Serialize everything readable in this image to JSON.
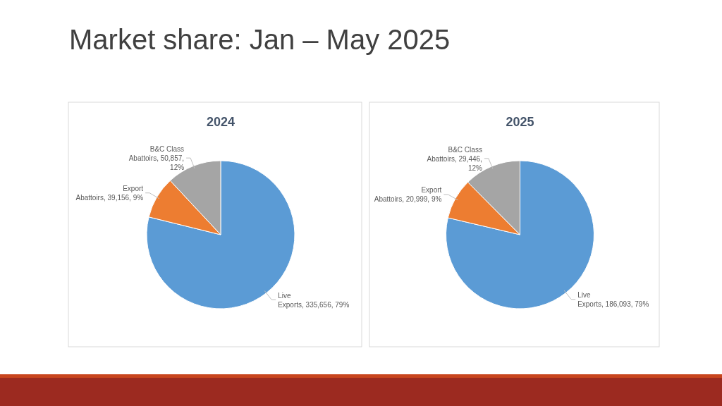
{
  "chart_data": [
    {
      "type": "pie",
      "title": "2024",
      "categories": [
        "Live Exports",
        "Export Abattoirs",
        "B&C Class Abattoirs"
      ],
      "values": [
        335656,
        39156,
        50857
      ],
      "colors": [
        "#5b9bd5",
        "#ed7d31",
        "#a5a5a5"
      ],
      "value_labels": [
        "335,656, 79%",
        "39,156, 9%",
        "50,857, 12%"
      ],
      "annotations": [
        "Market share: Jan – May 2025"
      ]
    },
    {
      "type": "pie",
      "title": "2025",
      "categories": [
        "Live Exports",
        "Export Abattoirs",
        "B&C Class Abattoirs"
      ],
      "values": [
        186093,
        20999,
        29446
      ],
      "colors": [
        "#5b9bd5",
        "#ed7d31",
        "#a5a5a5"
      ],
      "value_labels": [
        "186,093, 79%",
        "20,999, 9%",
        "29,446, 12%"
      ]
    }
  ]
}
